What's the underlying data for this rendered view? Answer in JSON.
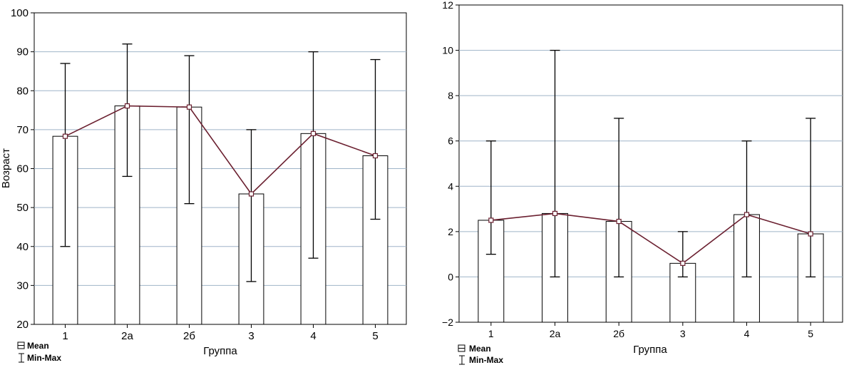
{
  "chart_data": [
    {
      "type": "bar",
      "categories": [
        "1",
        "2а",
        "2б",
        "3",
        "4",
        "5"
      ],
      "mean": [
        68.3,
        76.1,
        75.8,
        53.5,
        69.0,
        63.3
      ],
      "min": [
        40,
        58,
        51,
        31,
        37,
        47
      ],
      "max": [
        87,
        92,
        89,
        70,
        90,
        88
      ],
      "ylim": [
        20,
        100
      ],
      "yticks": [
        "100",
        "90",
        "80",
        "70",
        "60",
        "50",
        "40",
        "30",
        "20"
      ],
      "xlabel": "Группа",
      "ylabel": "Возраст",
      "grid": true,
      "legend": {
        "position": "bottom-left",
        "mean_label": "Mean",
        "range_label": "Min-Max"
      },
      "colors": {
        "line": "#6b2030",
        "bar_edge": "#000000",
        "grid": "#9fb4c8"
      }
    },
    {
      "type": "bar",
      "categories": [
        "1",
        "2а",
        "2б",
        "3",
        "4",
        "5"
      ],
      "mean": [
        2.5,
        2.8,
        2.45,
        0.6,
        2.75,
        1.9
      ],
      "min": [
        1,
        0,
        0,
        0,
        0,
        0
      ],
      "max": [
        6,
        10,
        7,
        2,
        6,
        7
      ],
      "ylim": [
        -2,
        12
      ],
      "yticks": [
        "12",
        "10",
        "8",
        "6",
        "4",
        "2",
        "0",
        "−2"
      ],
      "xlabel": "Группа",
      "ylabel": "",
      "grid": true,
      "legend": {
        "position": "bottom-left",
        "mean_label": "Mean",
        "range_label": "Min-Max"
      },
      "colors": {
        "line": "#6b2030",
        "bar_edge": "#000000",
        "grid": "#9fb4c8"
      }
    }
  ]
}
